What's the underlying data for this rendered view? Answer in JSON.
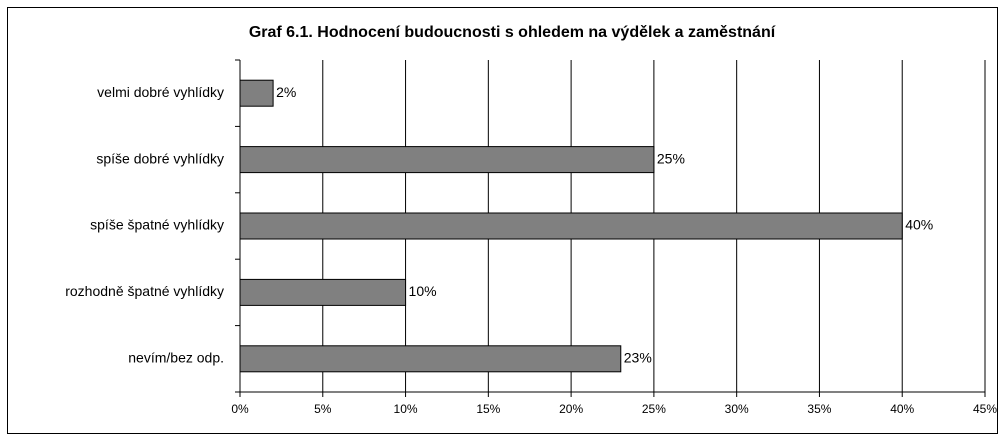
{
  "chart_data": {
    "type": "bar",
    "orientation": "horizontal",
    "title": "Graf 6.1. Hodnocení budoucnosti s ohledem na výdělek a zaměstnání",
    "categories": [
      "velmi dobré vyhlídky",
      "spíše dobré vyhlídky",
      "spíše špatné vyhlídky",
      "rozhodně špatné vyhlídky",
      "nevím/bez odp."
    ],
    "values": [
      2,
      25,
      40,
      10,
      23
    ],
    "value_labels": [
      "2%",
      "25%",
      "40%",
      "10%",
      "23%"
    ],
    "color": "#808080",
    "xlim": [
      0,
      45
    ],
    "xticks": [
      {
        "value": 0,
        "label": "0%"
      },
      {
        "value": 5,
        "label": "5%"
      },
      {
        "value": 10,
        "label": "10%"
      },
      {
        "value": 15,
        "label": "15%"
      },
      {
        "value": 20,
        "label": "20%"
      },
      {
        "value": 25,
        "label": "25%"
      },
      {
        "value": 30,
        "label": "30%"
      },
      {
        "value": 35,
        "label": "35%"
      },
      {
        "value": 40,
        "label": "40%"
      },
      {
        "value": 45,
        "label": "45%"
      }
    ],
    "grid": true
  }
}
